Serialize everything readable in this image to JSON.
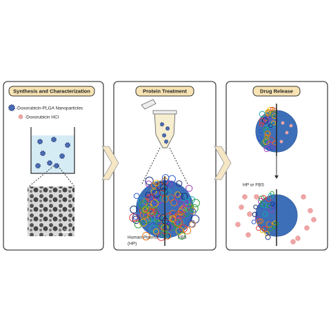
{
  "panels": [
    {
      "title": "Synthesis and Characterization",
      "legend": [
        "-Doxorubicin-PLGA Nanoparticles",
        "-Doxorubicin HCl"
      ],
      "scale_bar": "1 µm"
    },
    {
      "title": "Protein Treatment",
      "left_label": [
        "Human Plasma",
        "(HP)"
      ],
      "right_label": "FBS"
    },
    {
      "title": "Drug Release",
      "condition": "HP or FBS"
    }
  ]
}
